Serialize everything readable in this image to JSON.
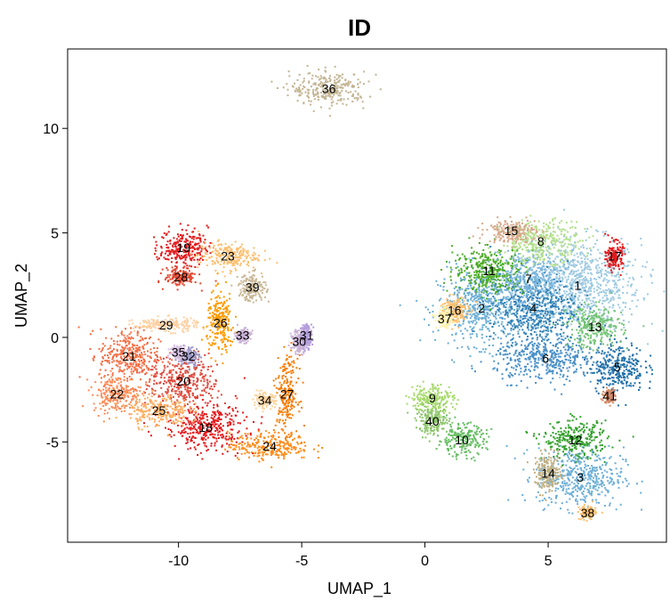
{
  "chart_data": {
    "type": "scatter",
    "title": "ID",
    "xlabel": "UMAP_1",
    "ylabel": "UMAP_2",
    "xlim": [
      -14.5,
      9.8
    ],
    "ylim": [
      -9.8,
      13.8
    ],
    "xticks": [
      -10,
      -5,
      0,
      5
    ],
    "yticks": [
      -5,
      0,
      5,
      10
    ],
    "grid": false,
    "legend": "none",
    "clusters": [
      {
        "label": "1",
        "x": 6.2,
        "y": 2.5,
        "color": "#9ecae1",
        "rx": 2.3,
        "ry": 2.0
      },
      {
        "label": "2",
        "x": 2.3,
        "y": 1.4,
        "color": "#6baed6",
        "rx": 1.6,
        "ry": 1.6
      },
      {
        "label": "3",
        "x": 6.3,
        "y": -6.7,
        "color": "#6baed6",
        "rx": 1.6,
        "ry": 1.3
      },
      {
        "label": "4",
        "x": 4.4,
        "y": 1.4,
        "color": "#2f7fb5",
        "rx": 1.6,
        "ry": 1.5
      },
      {
        "label": "5",
        "x": 7.8,
        "y": -1.4,
        "color": "#1f6fa8",
        "rx": 1.0,
        "ry": 1.1
      },
      {
        "label": "6",
        "x": 4.9,
        "y": -1.0,
        "color": "#4a90c8",
        "rx": 1.9,
        "ry": 1.0
      },
      {
        "label": "7",
        "x": 4.2,
        "y": 2.8,
        "color": "#7ab5dc",
        "rx": 1.4,
        "ry": 1.2
      },
      {
        "label": "8",
        "x": 4.7,
        "y": 4.6,
        "color": "#b2df8a",
        "rx": 1.5,
        "ry": 0.9
      },
      {
        "label": "9",
        "x": 0.3,
        "y": -2.9,
        "color": "#a6d96a",
        "rx": 0.8,
        "ry": 0.6
      },
      {
        "label": "10",
        "x": 1.5,
        "y": -4.9,
        "color": "#66bd63",
        "rx": 0.9,
        "ry": 0.7
      },
      {
        "label": "11",
        "x": 2.6,
        "y": 3.2,
        "color": "#4dac26",
        "rx": 1.3,
        "ry": 1.0
      },
      {
        "label": "12",
        "x": 6.1,
        "y": -4.9,
        "color": "#33a02c",
        "rx": 1.2,
        "ry": 0.8
      },
      {
        "label": "13",
        "x": 6.9,
        "y": 0.5,
        "color": "#74c476",
        "rx": 1.0,
        "ry": 0.9
      },
      {
        "label": "14",
        "x": 5.0,
        "y": -6.5,
        "color": "#bfae82",
        "rx": 0.5,
        "ry": 0.8
      },
      {
        "label": "15",
        "x": 3.5,
        "y": 5.1,
        "color": "#d7a98c",
        "rx": 0.9,
        "ry": 0.5
      },
      {
        "label": "16",
        "x": 1.2,
        "y": 1.3,
        "color": "#fdbf6f",
        "rx": 0.5,
        "ry": 0.6
      },
      {
        "label": "17",
        "x": 7.7,
        "y": 3.9,
        "color": "#e31a1c",
        "rx": 0.3,
        "ry": 0.6
      },
      {
        "label": "18",
        "x": -8.9,
        "y": -4.3,
        "color": "#e31a1c",
        "rx": 1.5,
        "ry": 1.0
      },
      {
        "label": "19",
        "x": -9.8,
        "y": 4.3,
        "color": "#e31a1c",
        "rx": 0.9,
        "ry": 0.8
      },
      {
        "label": "20",
        "x": -9.8,
        "y": -2.1,
        "color": "#de4b3e",
        "rx": 1.3,
        "ry": 1.1
      },
      {
        "label": "21",
        "x": -12.0,
        "y": -0.9,
        "color": "#f46d43",
        "rx": 1.1,
        "ry": 1.2
      },
      {
        "label": "22",
        "x": -12.5,
        "y": -2.7,
        "color": "#fc8d59",
        "rx": 0.9,
        "ry": 0.8
      },
      {
        "label": "23",
        "x": -8.0,
        "y": 3.9,
        "color": "#fdbf6f",
        "rx": 1.1,
        "ry": 0.6
      },
      {
        "label": "24",
        "x": -6.3,
        "y": -5.2,
        "color": "#ff8c1a",
        "rx": 1.5,
        "ry": 0.6
      },
      {
        "label": "25",
        "x": -10.8,
        "y": -3.5,
        "color": "#fdae61",
        "rx": 1.1,
        "ry": 0.7
      },
      {
        "label": "26",
        "x": -8.3,
        "y": 0.7,
        "color": "#ff9a00",
        "rx": 0.5,
        "ry": 1.3
      },
      {
        "label": "27",
        "x": -5.6,
        "y": -2.7,
        "color": "#f57e0a",
        "rx": 0.4,
        "ry": 1.6
      },
      {
        "label": "28",
        "x": -9.9,
        "y": 2.9,
        "color": "#e34a33",
        "rx": 0.6,
        "ry": 0.4
      },
      {
        "label": "29",
        "x": -10.5,
        "y": 0.6,
        "color": "#fdd0a2",
        "rx": 1.2,
        "ry": 0.3
      },
      {
        "label": "30",
        "x": -5.1,
        "y": -0.2,
        "color": "#cab2d6",
        "rx": 0.3,
        "ry": 0.5
      },
      {
        "label": "31",
        "x": -4.8,
        "y": 0.1,
        "color": "#b39ddb",
        "rx": 0.2,
        "ry": 0.5
      },
      {
        "label": "32",
        "x": -9.6,
        "y": -0.9,
        "color": "#9e9ac8",
        "rx": 0.4,
        "ry": 0.4
      },
      {
        "label": "33",
        "x": -7.4,
        "y": 0.1,
        "color": "#cab2d6",
        "rx": 0.3,
        "ry": 0.3
      },
      {
        "label": "34",
        "x": -6.5,
        "y": -3.0,
        "color": "#fdd49e",
        "rx": 0.4,
        "ry": 0.3
      },
      {
        "label": "35",
        "x": -10.0,
        "y": -0.7,
        "color": "#d9c2e3",
        "rx": 0.3,
        "ry": 0.3
      },
      {
        "label": "36",
        "x": -3.9,
        "y": 11.9,
        "color": "#c2b391",
        "rx": 1.4,
        "ry": 0.7
      },
      {
        "label": "37",
        "x": 0.8,
        "y": 0.9,
        "color": "#fff2ae",
        "rx": 0.3,
        "ry": 0.4
      },
      {
        "label": "38",
        "x": 6.6,
        "y": -8.4,
        "color": "#fdbf6f",
        "rx": 0.3,
        "ry": 0.3
      },
      {
        "label": "39",
        "x": -7.0,
        "y": 2.4,
        "color": "#c9b896",
        "rx": 0.5,
        "ry": 0.6
      },
      {
        "label": "40",
        "x": 0.3,
        "y": -4.0,
        "color": "#8cc56a",
        "rx": 0.6,
        "ry": 0.6
      },
      {
        "label": "41",
        "x": 7.5,
        "y": -2.8,
        "color": "#d38c6a",
        "rx": 0.2,
        "ry": 0.3
      }
    ]
  }
}
